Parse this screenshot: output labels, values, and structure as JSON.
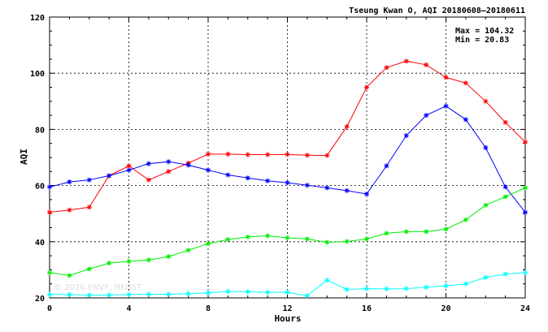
{
  "chart_data": {
    "type": "line",
    "title": "Tseung Kwan O, AQI 20180608–20180611",
    "xlabel": "Hours",
    "ylabel": "AQI",
    "xlim": [
      0,
      24
    ],
    "ylim": [
      20,
      120
    ],
    "x_ticks": [
      0,
      4,
      8,
      12,
      16,
      20,
      24
    ],
    "y_ticks": [
      20,
      40,
      60,
      80,
      100,
      120
    ],
    "grid": true,
    "x": [
      0,
      1,
      2,
      3,
      4,
      5,
      6,
      7,
      8,
      9,
      10,
      11,
      12,
      13,
      14,
      15,
      16,
      17,
      18,
      19,
      20,
      21,
      22,
      23,
      24
    ],
    "series": [
      {
        "color": "#ff0000",
        "values": [
          50.5,
          51.3,
          52.3,
          63.5,
          67.0,
          62.0,
          65.0,
          68.0,
          71.2,
          71.2,
          71.0,
          71.0,
          71.1,
          70.8,
          70.7,
          81.0,
          95.0,
          102.0,
          104.3,
          103.0,
          98.5,
          96.5,
          90.0,
          82.5,
          75.5
        ]
      },
      {
        "color": "#0000ff",
        "values": [
          59.5,
          61.3,
          62.0,
          63.5,
          65.5,
          67.8,
          68.5,
          67.3,
          65.5,
          63.8,
          62.7,
          61.7,
          61.0,
          60.1,
          59.2,
          58.2,
          57.0,
          67.0,
          77.8,
          85.0,
          88.3,
          83.5,
          73.5,
          59.5,
          50.5
        ]
      },
      {
        "color": "#00ee00",
        "values": [
          29.0,
          28.0,
          30.3,
          32.4,
          33.0,
          33.5,
          34.7,
          37.0,
          39.3,
          40.8,
          41.7,
          42.1,
          41.4,
          41.0,
          39.8,
          40.1,
          41.0,
          43.0,
          43.6,
          43.6,
          44.5,
          47.8,
          53.0,
          56.0,
          59.2
        ]
      },
      {
        "color": "#00ffff",
        "values": [
          21.2,
          21.2,
          21.0,
          21.0,
          21.2,
          21.3,
          21.3,
          21.5,
          21.8,
          22.3,
          22.2,
          22.0,
          22.0,
          20.8,
          26.3,
          23.0,
          23.3,
          23.2,
          23.3,
          23.8,
          24.3,
          25.0,
          27.3,
          28.5,
          29.0
        ]
      }
    ],
    "annotations": {
      "max": "Max = 104.32",
      "min": "Min =  20.83"
    },
    "watermark": "© 2026 ENVF, HKUST"
  }
}
